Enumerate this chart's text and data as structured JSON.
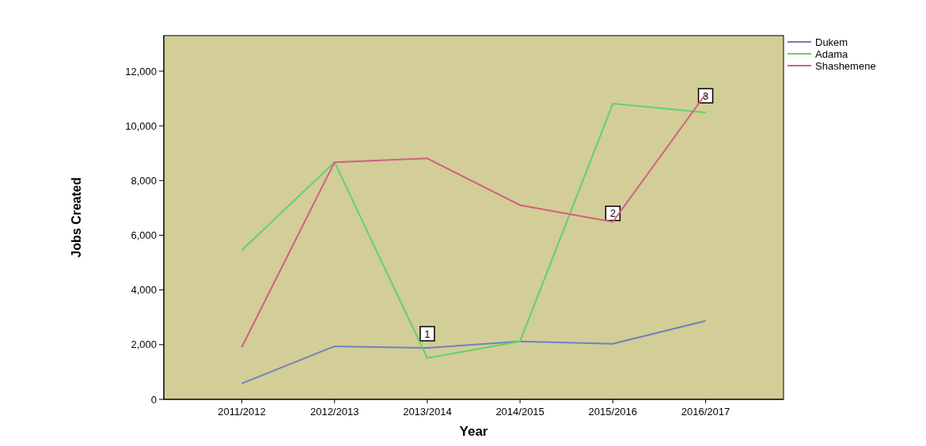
{
  "chart_data": {
    "type": "line",
    "xlabel": "Year",
    "ylabel": "Jobs Created",
    "categories": [
      "2011/2012",
      "2012/2013",
      "2013/2014",
      "2014/2015",
      "2015/2016",
      "2016/2017"
    ],
    "series": [
      {
        "name": "Dukem",
        "color": "#7080c0",
        "values": [
          580,
          1940,
          1880,
          2120,
          2030,
          2870
        ]
      },
      {
        "name": "Adama",
        "color": "#5fd36a",
        "values": [
          5450,
          8670,
          1510,
          2120,
          10810,
          10490
        ]
      },
      {
        "name": "Shashemene",
        "color": "#d0607f",
        "values": [
          1910,
          8670,
          8810,
          7100,
          6490,
          11160
        ]
      }
    ],
    "ylim": [
      0,
      13300
    ],
    "yticks": [
      {
        "value": 0,
        "label": "0"
      },
      {
        "value": 2000,
        "label": "2,000"
      },
      {
        "value": 4000,
        "label": "4,000"
      },
      {
        "value": 6000,
        "label": "6,000"
      },
      {
        "value": 8000,
        "label": "8,000"
      },
      {
        "value": 10000,
        "label": "10,000"
      },
      {
        "value": 12000,
        "label": "12,000"
      }
    ],
    "annotations": [
      {
        "text": "1",
        "x": "2013/2014",
        "y": 2400
      },
      {
        "text": "2",
        "x": "2015/2016",
        "y": 6800
      },
      {
        "text": "3",
        "x": "2016/2017",
        "y": 11100
      }
    ],
    "legend": "top right",
    "grid": false,
    "marker": "none",
    "line_style": "solid"
  }
}
